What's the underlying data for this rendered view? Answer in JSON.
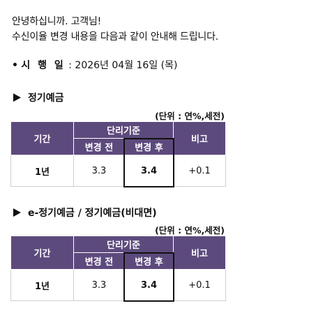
{
  "greeting": {
    "line1": "안녕하십니까. 고객님!",
    "line2": "수신이율 변경 내용을 다음과 같이 안내해 드립니다."
  },
  "effective": {
    "bullet": "•",
    "label": "시 행 일",
    "value": " : 2026년 04월 16일 (목)"
  },
  "sections": [
    {
      "title": "정기예금",
      "unit": "(단위 : 연%,세전)",
      "headers": {
        "period": "기간",
        "base_rate": "단리기준",
        "before": "변경 전",
        "after": "변경 후",
        "compare": "비고"
      },
      "row": {
        "period": "1년",
        "before": "3.3",
        "after": "3.4",
        "diff": "+0.1"
      }
    },
    {
      "title": "e-정기예금 / 정기예금(비대면)",
      "unit": "(단위 : 연%,세전)",
      "headers": {
        "period": "기간",
        "base_rate": "단리기준",
        "before": "변경 전",
        "after": "변경 후",
        "compare": "비고"
      },
      "row": {
        "period": "1년",
        "before": "3.3",
        "after": "3.4",
        "diff": "+0.1"
      }
    }
  ],
  "colors": {
    "header_bg": "#5d4a7d",
    "header_text": "#ffffff"
  }
}
